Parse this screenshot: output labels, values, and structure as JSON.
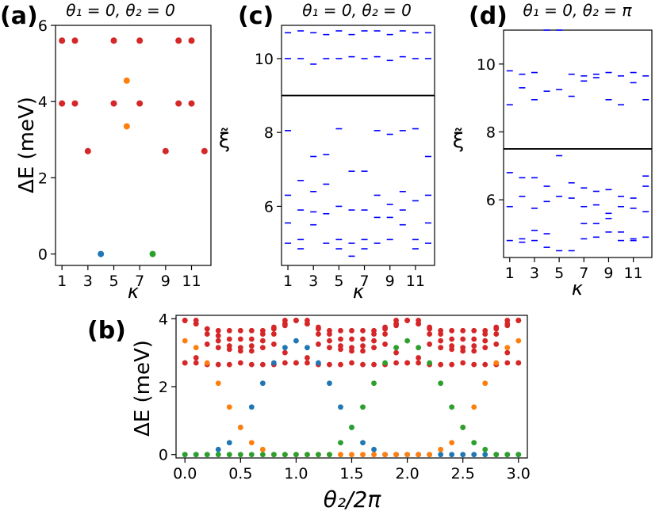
{
  "colors": {
    "red": "#d62728",
    "orange": "#ff7f0e",
    "blue": "#1f77b4",
    "green": "#2ca02c",
    "spectrum": "#0000ff",
    "line": "#000000"
  },
  "chart_data": [
    {
      "panel": "(a)",
      "type": "scatter",
      "title": "θ₁ = 0, θ₂ = 0",
      "xlabel": "κ",
      "ylabel": "ΔE (meV)",
      "xlim": [
        0.5,
        12.5
      ],
      "ylim": [
        -0.3,
        6.0
      ],
      "xticks": [
        1,
        3,
        5,
        7,
        9,
        11
      ],
      "yticks": [
        0,
        2,
        4,
        6
      ],
      "series": [
        {
          "color": "red",
          "points": [
            [
              1,
              5.6
            ],
            [
              2,
              5.6
            ],
            [
              5,
              5.6
            ],
            [
              7,
              5.6
            ],
            [
              10,
              5.6
            ],
            [
              11,
              5.6
            ],
            [
              1,
              3.95
            ],
            [
              2,
              3.95
            ],
            [
              5,
              3.95
            ],
            [
              7,
              3.95
            ],
            [
              10,
              3.95
            ],
            [
              11,
              3.95
            ],
            [
              3,
              2.7
            ],
            [
              9,
              2.7
            ],
            [
              12,
              2.7
            ]
          ]
        },
        {
          "color": "orange",
          "points": [
            [
              6,
              4.55
            ],
            [
              6,
              3.35
            ]
          ]
        },
        {
          "color": "blue",
          "points": [
            [
              4,
              0.0
            ]
          ]
        },
        {
          "color": "green",
          "points": [
            [
              8,
              0.0
            ]
          ]
        }
      ]
    },
    {
      "panel": "(c)",
      "type": "scatter",
      "title": "θ₁ = 0, θ₂ = 0",
      "xlabel": "κ",
      "ylabel": "ξ̃",
      "xlim": [
        0.5,
        12.5
      ],
      "ylim": [
        4.4,
        10.9
      ],
      "xticks": [
        1,
        3,
        5,
        7,
        9,
        11
      ],
      "yticks": [
        6,
        8,
        10
      ],
      "hline": 9.0,
      "levels": [
        [
          10.0,
          10.7,
          8.05,
          6.3,
          5.55,
          5.0
        ],
        [
          10.0,
          10.75,
          6.7,
          5.9,
          5.1,
          4.85
        ],
        [
          9.85,
          10.7,
          7.35,
          6.4,
          5.85,
          5.5
        ],
        [
          10.0,
          10.65,
          7.4,
          6.6,
          5.8,
          5.0
        ],
        [
          10.0,
          10.75,
          8.1,
          6.0,
          5.1,
          4.85
        ],
        [
          10.05,
          10.65,
          6.95,
          5.9,
          5.0,
          4.65
        ],
        [
          10.0,
          10.75,
          6.95,
          5.9,
          5.1,
          4.85
        ],
        [
          10.05,
          10.75,
          8.05,
          6.3,
          5.7,
          5.0
        ],
        [
          9.95,
          10.65,
          7.95,
          6.05,
          5.7,
          5.1
        ],
        [
          10.05,
          10.75,
          8.05,
          6.4,
          5.9,
          5.5
        ],
        [
          10.0,
          10.7,
          8.1,
          6.15,
          5.1,
          4.85
        ],
        [
          10.0,
          10.7,
          7.35,
          6.3,
          5.55,
          5.0
        ]
      ]
    },
    {
      "panel": "(d)",
      "type": "scatter",
      "title": "θ₁ = 0, θ₂ = π",
      "xlabel": "κ",
      "ylabel": "ξ̃",
      "xlim": [
        0.5,
        12.5
      ],
      "ylim": [
        4.3,
        11.0
      ],
      "xticks": [
        1,
        3,
        5,
        7,
        9,
        11
      ],
      "yticks": [
        6,
        8,
        10
      ],
      "hline": 7.5,
      "levels": [
        [
          9.8,
          8.8,
          6.8,
          5.8,
          4.8
        ],
        [
          9.3,
          9.7,
          6.65,
          6.1,
          4.85,
          4.75
        ],
        [
          9.75,
          8.95,
          6.65,
          5.75,
          5.1,
          4.8
        ],
        [
          11.0,
          9.2,
          6.4,
          5.95,
          5.0,
          4.6
        ],
        [
          11.0,
          9.25,
          7.3,
          6.1,
          4.5
        ],
        [
          9.7,
          9.05,
          6.5,
          6.05,
          4.5
        ],
        [
          9.65,
          9.5,
          6.35,
          5.8,
          5.3,
          4.85
        ],
        [
          9.6,
          9.7,
          6.25,
          5.85,
          5.3,
          4.9
        ],
        [
          9.75,
          8.95,
          6.3,
          5.6,
          5.45,
          5.05
        ],
        [
          9.65,
          8.8,
          6.1,
          5.8,
          5.05,
          4.8
        ],
        [
          9.75,
          9.45,
          6.05,
          5.75,
          4.85,
          4.8
        ],
        [
          9.65,
          8.95,
          6.7,
          6.4,
          5.65,
          4.9
        ]
      ]
    },
    {
      "panel": "(b)",
      "type": "scatter",
      "xlabel": "θ₂/2π",
      "ylabel": "ΔE (meV)",
      "xlim": [
        -0.08,
        3.08
      ],
      "ylim": [
        -0.1,
        4.1
      ],
      "xticks": [
        "0.0",
        "0.5",
        "1.0",
        "1.5",
        "2.0",
        "2.5",
        "3.0"
      ],
      "yticks": [
        0,
        2,
        4
      ],
      "x": [
        0.0,
        0.1,
        0.2,
        0.3,
        0.4,
        0.5,
        0.6,
        0.7,
        0.8,
        0.9,
        1.0,
        1.1,
        1.2,
        1.3,
        1.4,
        1.5,
        1.6,
        1.7,
        1.8,
        1.9,
        2.0,
        2.1,
        2.2,
        2.3,
        2.4,
        2.5,
        2.6,
        2.7,
        2.8,
        2.9,
        3.0
      ],
      "series": [
        {
          "color": "red",
          "rows": [
            [
              3.95,
              3.85,
              3.7,
              3.65,
              3.65,
              3.65,
              3.65,
              3.65,
              3.7,
              3.8,
              3.95,
              3.85,
              3.7,
              3.65,
              3.65,
              3.65,
              3.65,
              3.65,
              3.7,
              3.8,
              3.95,
              3.85,
              3.7,
              3.65,
              3.65,
              3.65,
              3.65,
              3.65,
              3.7,
              3.8,
              3.95
            ],
            [
              3.95,
              3.95,
              3.7,
              3.5,
              3.4,
              3.4,
              3.4,
              3.55,
              3.75,
              3.95,
              3.95,
              3.95,
              3.75,
              3.55,
              3.4,
              3.4,
              3.4,
              3.55,
              3.75,
              3.95,
              3.95,
              3.95,
              3.75,
              3.55,
              3.4,
              3.4,
              3.4,
              3.55,
              3.75,
              3.95,
              3.95
            ],
            [
              2.7,
              2.85,
              3.25,
              3.15,
              3.1,
              3.05,
              3.05,
              3.15,
              3.25,
              3.0,
              2.7,
              2.85,
              3.25,
              3.15,
              3.1,
              3.05,
              3.05,
              3.15,
              3.25,
              3.0,
              2.7,
              2.85,
              3.25,
              3.15,
              3.1,
              3.05,
              3.05,
              3.15,
              3.25,
              3.0,
              2.7
            ],
            [
              2.7,
              2.7,
              2.65,
              2.65,
              2.65,
              2.7,
              2.65,
              2.65,
              2.65,
              2.7,
              2.7,
              2.7,
              2.65,
              2.65,
              2.65,
              2.7,
              2.65,
              2.65,
              2.65,
              2.7,
              2.7,
              2.7,
              2.65,
              2.65,
              2.65,
              2.7,
              2.65,
              2.65,
              2.65,
              2.7,
              2.7
            ],
            [
              3.95,
              3.85,
              3.55,
              3.35,
              3.2,
              3.15,
              3.2,
              3.35,
              3.55,
              3.85,
              3.95,
              3.85,
              3.55,
              3.35,
              3.2,
              3.15,
              3.2,
              3.35,
              3.55,
              3.85,
              3.95,
              3.85,
              3.55,
              3.35,
              3.2,
              3.15,
              3.2,
              3.35,
              3.55,
              3.85,
              3.95
            ]
          ]
        },
        {
          "color": "blue",
          "values": [
            0.0,
            0.0,
            0.0,
            0.15,
            0.35,
            0.8,
            1.4,
            2.1,
            2.7,
            3.15,
            3.35,
            3.15,
            2.7,
            2.1,
            1.4,
            0.8,
            0.35,
            0.15,
            0.0,
            0.0,
            0.0,
            0.0,
            0.0,
            0.0,
            0.0,
            0.0,
            0.0,
            0.0,
            0.0,
            0.0,
            0.0
          ]
        },
        {
          "color": "orange",
          "values": [
            3.35,
            3.15,
            2.7,
            2.1,
            1.4,
            0.8,
            0.35,
            0.15,
            0.0,
            0.0,
            0.0,
            0.0,
            0.0,
            0.0,
            0.0,
            0.0,
            0.0,
            0.0,
            0.0,
            0.0,
            0.0,
            0.0,
            0.0,
            0.15,
            0.35,
            0.8,
            1.4,
            2.1,
            2.7,
            3.15,
            3.35
          ]
        },
        {
          "color": "green",
          "values": [
            0.0,
            0.0,
            0.0,
            0.0,
            0.0,
            0.0,
            0.0,
            0.0,
            0.0,
            0.0,
            0.0,
            0.0,
            0.0,
            0.0,
            0.35,
            0.8,
            1.4,
            2.1,
            2.7,
            3.15,
            3.35,
            3.15,
            2.7,
            2.1,
            1.4,
            0.8,
            0.35,
            0.15,
            0.0,
            0.0,
            0.0
          ]
        }
      ]
    }
  ]
}
